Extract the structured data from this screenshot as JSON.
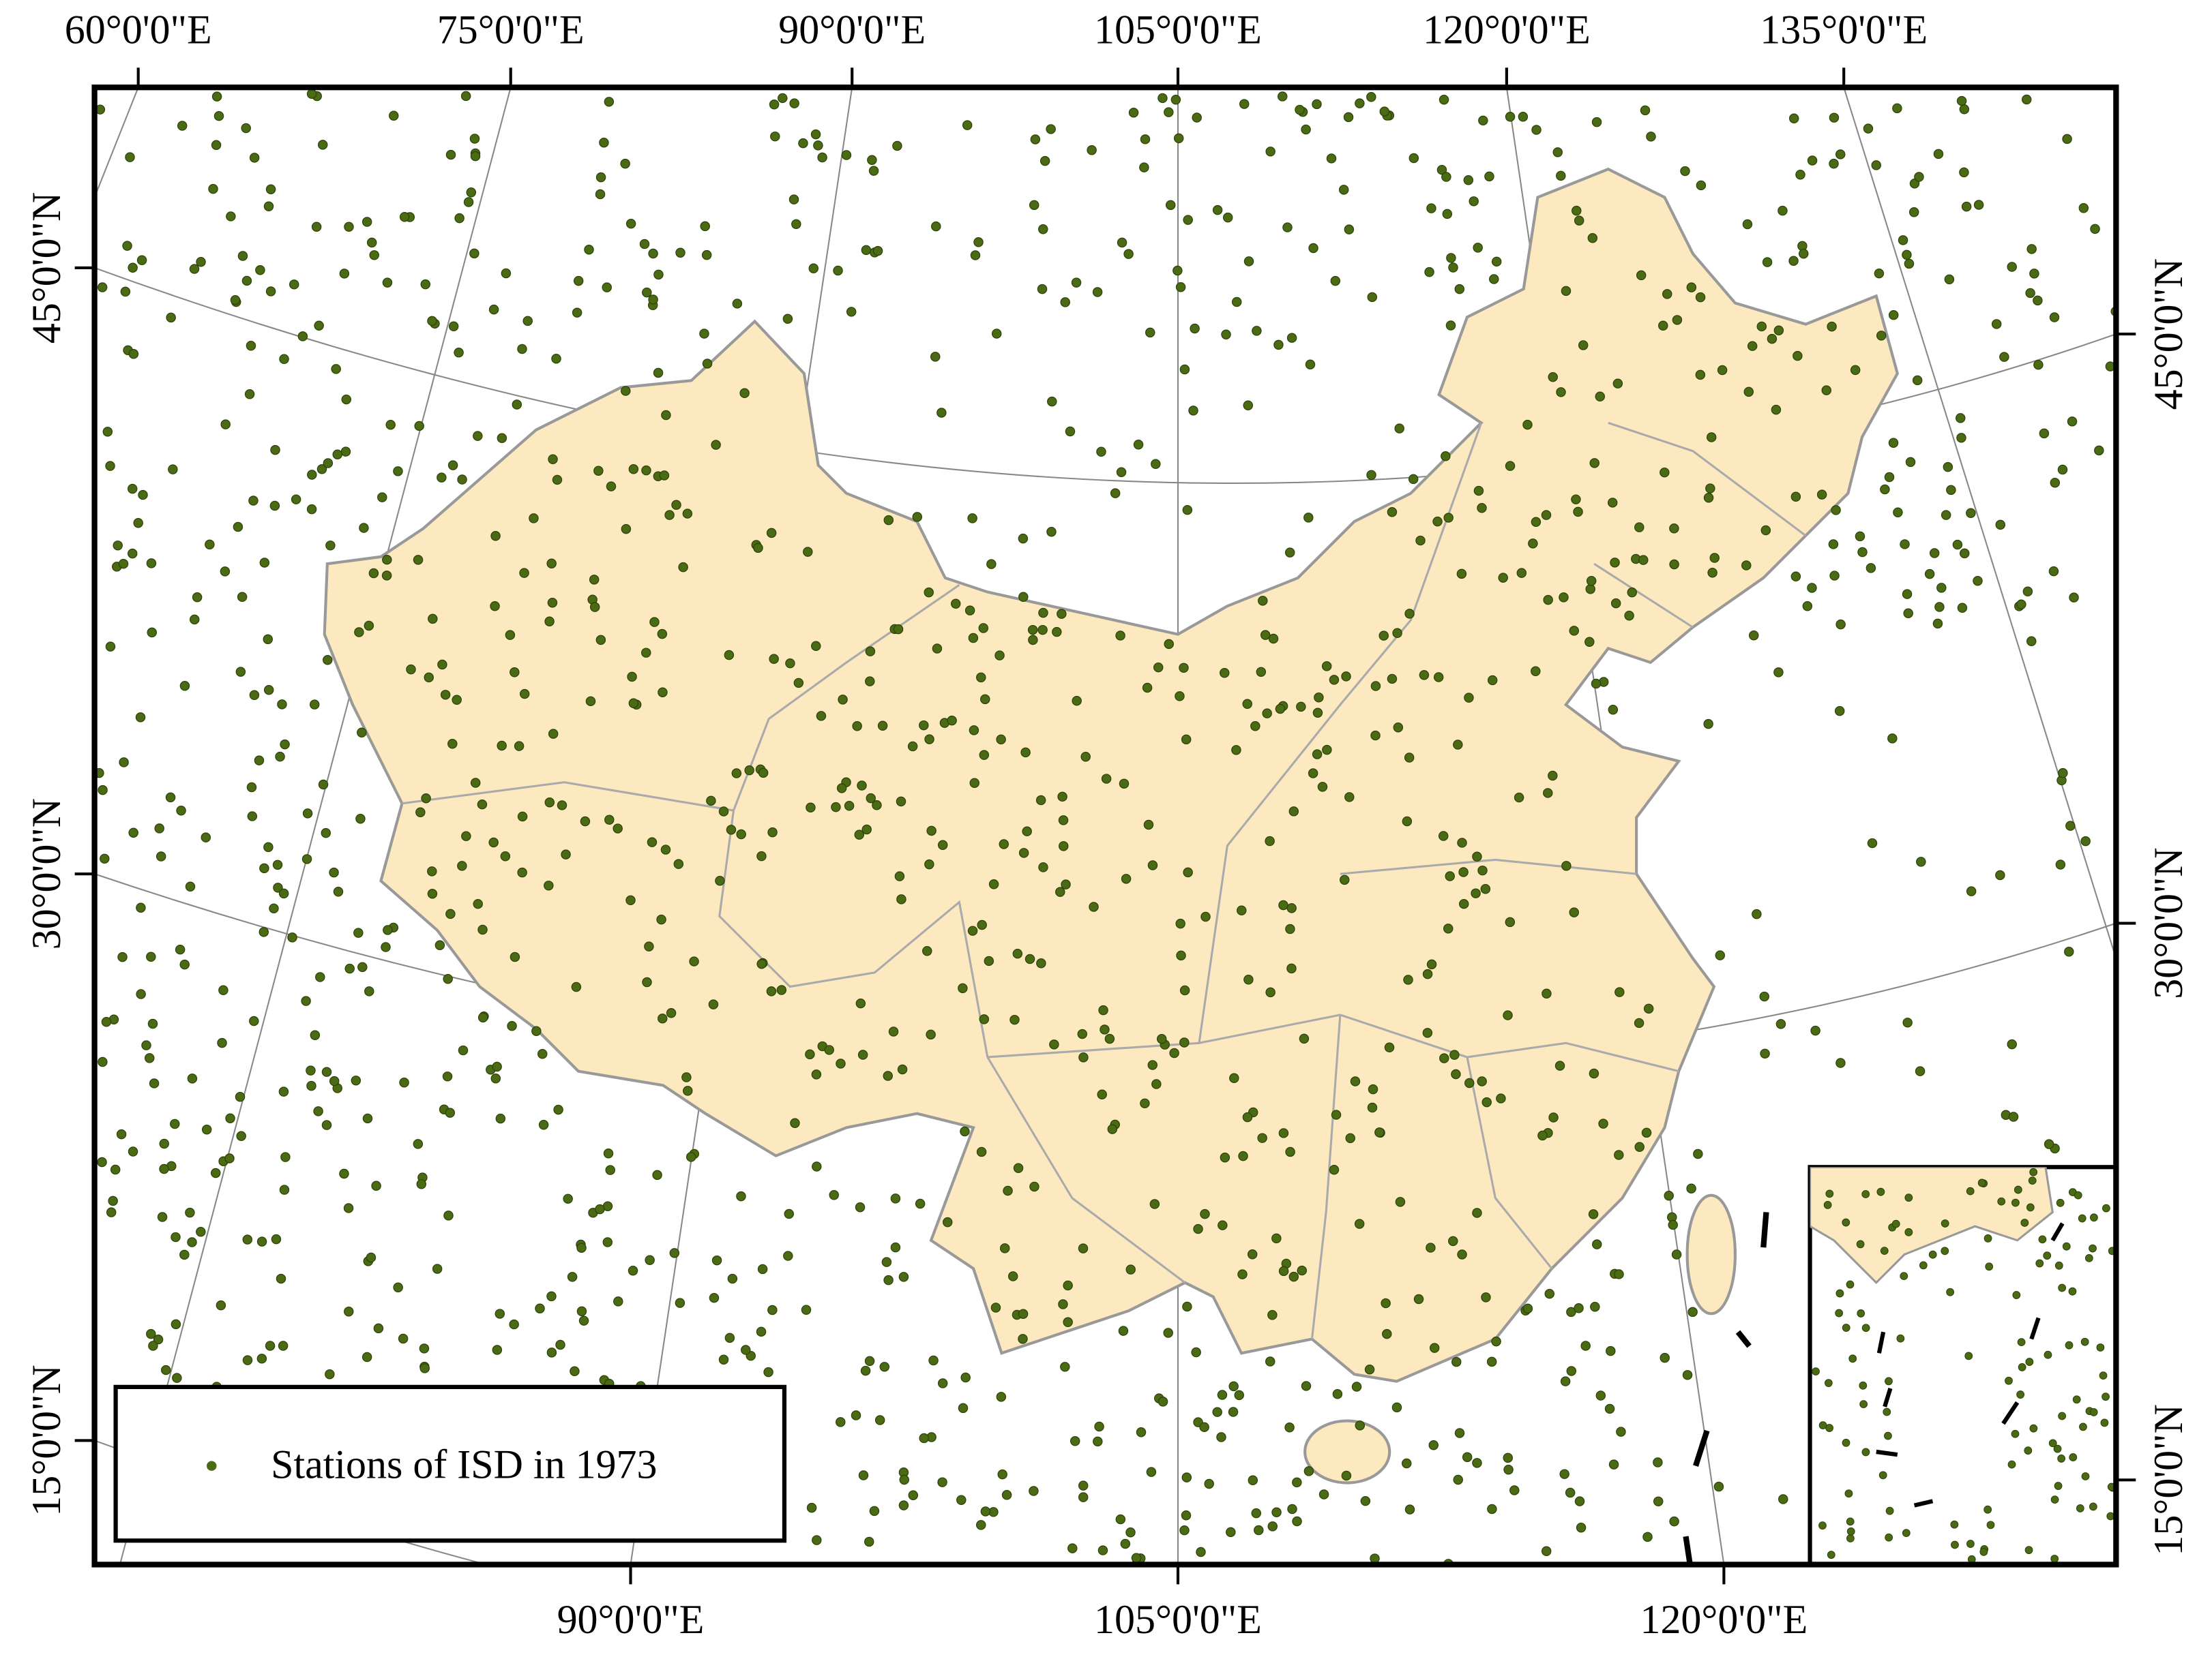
{
  "map": {
    "top_labels": [
      "60°0'0\"E",
      "75°0'0\"E",
      "90°0'0\"E",
      "105°0'0\"E",
      "120°0'0\"E",
      "135°0'0\"E"
    ],
    "bottom_labels": [
      "90°0'0\"E",
      "105°0'0\"E",
      "120°0'0\"E"
    ],
    "left_labels": [
      "45°0'0\"N",
      "30°0'0\"N",
      "15°0'0\"N"
    ],
    "right_labels": [
      "45°0'0\"N",
      "30°0'0\"N",
      "15°0'0\"N"
    ],
    "legend": {
      "label": "Stations of ISD in 1973",
      "color": "#4a6b14"
    }
  }
}
